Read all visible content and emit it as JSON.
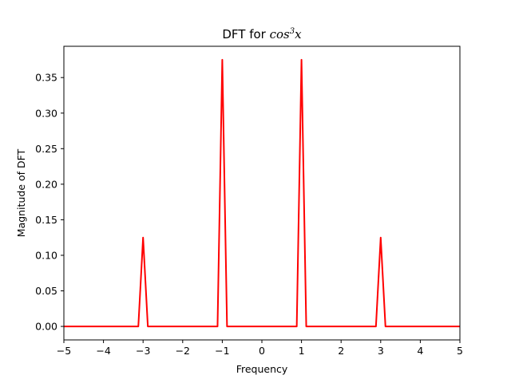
{
  "chart_data": {
    "type": "line",
    "title": "DFT for ",
    "title_math": {
      "base": "cos",
      "exp": "3",
      "var": "x"
    },
    "xlabel": "Frequency",
    "ylabel": "Magnitude of DFT",
    "xlim": [
      -5,
      5
    ],
    "ylim": [
      -0.019,
      0.394
    ],
    "x_ticks": [
      -5,
      -4,
      -3,
      -2,
      -1,
      0,
      1,
      2,
      3,
      4,
      5
    ],
    "x_tick_labels": [
      "−5",
      "−4",
      "−3",
      "−2",
      "−1",
      "0",
      "1",
      "2",
      "3",
      "4",
      "5"
    ],
    "y_ticks": [
      0.0,
      0.05,
      0.1,
      0.15,
      0.2,
      0.25,
      0.3,
      0.35
    ],
    "y_tick_labels": [
      "0.00",
      "0.05",
      "0.10",
      "0.15",
      "0.20",
      "0.25",
      "0.30",
      "0.35"
    ],
    "grid": false,
    "series": [
      {
        "color": "#ff0000",
        "x": [
          -5,
          -3.12,
          -3.0,
          -2.88,
          -1.12,
          -1.0,
          -0.88,
          0.88,
          1.0,
          1.12,
          2.88,
          3.0,
          3.12,
          5
        ],
        "y": [
          0,
          0,
          0.125,
          0,
          0,
          0.375,
          0,
          0,
          0.375,
          0,
          0,
          0.125,
          0,
          0
        ]
      }
    ]
  }
}
